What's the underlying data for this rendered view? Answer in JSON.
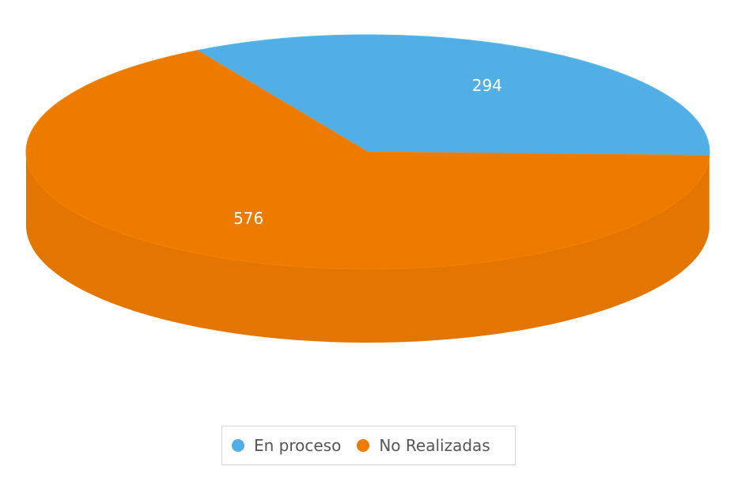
{
  "chart_data": {
    "type": "pie",
    "style": "3d",
    "series": [
      {
        "name": "En proceso",
        "value": 294,
        "color": "#51AFE6"
      },
      {
        "name": "No Realizadas",
        "value": 576,
        "color": "#EC7B00"
      }
    ],
    "data_labels": [
      "294",
      "576"
    ],
    "legend": {
      "position": "bottom",
      "items": [
        "En proceso",
        "No Realizadas"
      ]
    }
  }
}
